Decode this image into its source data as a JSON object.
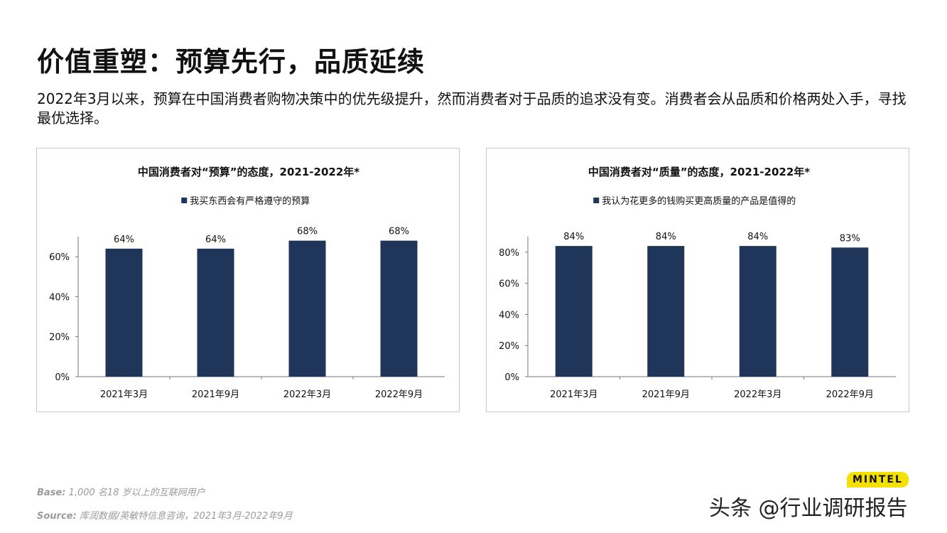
{
  "title": "价值重塑：预算先行，品质延续",
  "subtitle": "2022年3月以来，预算在中国消费者购物决策中的优先级提升，然而消费者对于品质的追求没有变。消费者会从品质和价格两处入手，寻找最优选择。",
  "footer": {
    "base_label": "Base:",
    "base": "1,000 名18 岁以上的互联网用户",
    "source_label": "Source:",
    "source": "库润数据/英敏特信息咨询，2021年3月-2022年9月"
  },
  "logo": "MINTEL",
  "watermark": "头条 @行业调研报告",
  "colors": {
    "bar": "#1f3559"
  },
  "chart_data": [
    {
      "type": "bar",
      "title": "中国消费者对“预算”的态度，2021-2022年*",
      "categories": [
        "2021年3月",
        "2021年9月",
        "2022年3月",
        "2022年9月"
      ],
      "series": [
        {
          "name": "我买东西会有严格遵守的预算",
          "values": [
            64,
            64,
            68,
            68
          ]
        }
      ],
      "data_labels": [
        "64%",
        "64%",
        "68%",
        "68%"
      ],
      "yticks": [
        "0%",
        "20%",
        "40%",
        "60%"
      ],
      "ylim": [
        0,
        70
      ],
      "legend": "top",
      "grid": false
    },
    {
      "type": "bar",
      "title": "中国消费者对“质量”的态度，2021-2022年*",
      "categories": [
        "2021年3月",
        "2021年9月",
        "2022年3月",
        "2022年9月"
      ],
      "series": [
        {
          "name": "我认为花更多的钱购买更高质量的产品是值得的",
          "values": [
            84,
            84,
            84,
            83
          ]
        }
      ],
      "data_labels": [
        "84%",
        "84%",
        "84%",
        "83%"
      ],
      "yticks": [
        "0%",
        "20%",
        "40%",
        "60%",
        "80%"
      ],
      "ylim": [
        0,
        90
      ],
      "legend": "top",
      "grid": false
    }
  ]
}
